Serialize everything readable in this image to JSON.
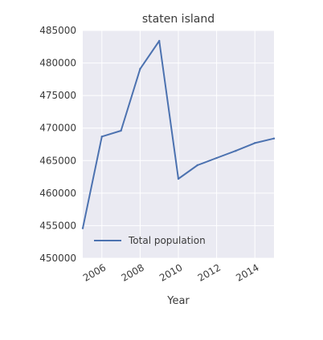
{
  "chart_data": {
    "type": "line",
    "title": "staten island",
    "xlabel": "Year",
    "ylabel": "",
    "xlim": [
      2005,
      2015
    ],
    "ylim": [
      450000,
      485000
    ],
    "xticks": [
      2006,
      2008,
      2010,
      2012,
      2014
    ],
    "xtick_labels": [
      "2006",
      "2008",
      "2010",
      "2012",
      "2014"
    ],
    "yticks": [
      450000,
      455000,
      460000,
      465000,
      470000,
      475000,
      480000,
      485000
    ],
    "ytick_labels": [
      "450000",
      "455000",
      "460000",
      "465000",
      "470000",
      "475000",
      "480000",
      "485000"
    ],
    "grid": true,
    "legend_position": "bottom-left",
    "x": [
      2005,
      2006,
      2007,
      2008,
      2009,
      2010,
      2011,
      2012,
      2013,
      2014,
      2015
    ],
    "series": [
      {
        "name": "Total population",
        "color": "#4c72b0",
        "values": [
          454600,
          468700,
          469600,
          479100,
          483400,
          462200,
          464300,
          465400,
          466500,
          467700,
          468400
        ]
      }
    ],
    "background_color": "#eaeaf2",
    "grid_color": "#ffffff"
  }
}
